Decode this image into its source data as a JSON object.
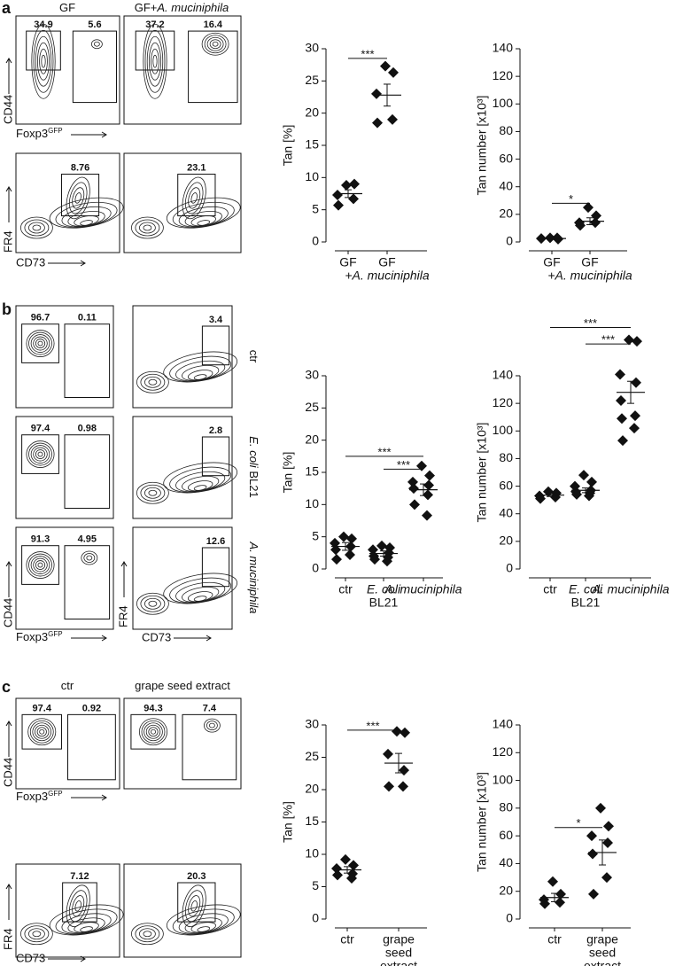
{
  "panel_labels": [
    "a",
    "b",
    "c"
  ],
  "flow": {
    "a": {
      "titles": [
        [
          {
            "t": "GF"
          }
        ],
        [
          {
            "t": "GF+"
          },
          {
            "t": "A. muciniphila",
            "i": true
          }
        ]
      ],
      "gates_top": [
        [
          "34.9",
          "5.6"
        ],
        [
          "37.2",
          "16.4"
        ]
      ],
      "gates_bottom": [
        "8.76",
        "23.1"
      ],
      "axes_top": {
        "y": "CD44",
        "x": [
          {
            "t": "Foxp3"
          },
          {
            "t": "GFP",
            "sup": true
          }
        ]
      },
      "axes_bottom": {
        "y": "FR4",
        "x": "CD73"
      }
    },
    "b": {
      "rows": [
        [
          {
            "t": "ctr"
          }
        ],
        [
          {
            "t": "E. coli",
            "i": true
          },
          {
            "t": " BL21"
          }
        ],
        [
          {
            "t": "A. muciniphila",
            "i": true
          }
        ]
      ],
      "gates_left": [
        [
          "96.7",
          "0.11"
        ],
        [
          "97.4",
          "0.98"
        ],
        [
          "91.3",
          "4.95"
        ]
      ],
      "gates_right": [
        "3.4",
        "2.8",
        "12.6"
      ],
      "axes_left": {
        "y": "CD44",
        "x": [
          {
            "t": "Foxp3"
          },
          {
            "t": "GFP",
            "sup": true
          }
        ]
      },
      "axes_right": {
        "y": "FR4",
        "x": "CD73"
      }
    },
    "c": {
      "titles": [
        [
          {
            "t": "ctr"
          }
        ],
        [
          {
            "t": "grape seed extract"
          }
        ]
      ],
      "gates_top": [
        [
          "97.4",
          "0.92"
        ],
        [
          "94.3",
          "7.4"
        ]
      ],
      "gates_bottom": [
        "7.12",
        "20.3"
      ],
      "axes_top": {
        "y": "CD44",
        "x": [
          {
            "t": "Foxp3"
          },
          {
            "t": "GFP",
            "sup": true
          }
        ]
      },
      "axes_bottom": {
        "y": "FR4",
        "x": "CD73"
      }
    }
  },
  "chart_data": [
    {
      "type": "dot",
      "ylabel": "Tan [%]",
      "color": "#111111",
      "categories": [
        [
          {
            "t": "GF"
          }
        ],
        [
          {
            "t": "GF"
          },
          {
            "t": "+A. muciniphila",
            "i": true
          }
        ]
      ],
      "values": [
        [
          8.8,
          9.0,
          7.3,
          6.7,
          5.7
        ],
        [
          27.3,
          26.3,
          23.0,
          19.0,
          18.5
        ]
      ],
      "means": [
        7.5,
        22.8
      ],
      "errors": [
        0.6,
        1.7
      ],
      "ylim": [
        0,
        30
      ],
      "yticks": [
        0,
        5,
        10,
        15,
        20,
        25,
        30
      ],
      "significance": [
        {
          "label": "***",
          "between": [
            0,
            1
          ],
          "y": 28.5
        }
      ]
    },
    {
      "type": "dot",
      "ylabel": "Tan number [x10³]",
      "color": "#111111",
      "categories": [
        [
          {
            "t": "GF"
          }
        ],
        [
          {
            "t": "GF"
          },
          {
            "t": "+A. muciniphila",
            "i": true
          }
        ]
      ],
      "values": [
        [
          3,
          2,
          2.5,
          3
        ],
        [
          25,
          19,
          14,
          14,
          12
        ]
      ],
      "means": [
        2.5,
        15
      ],
      "errors": [
        0.4,
        2.5
      ],
      "ylim": [
        0,
        140
      ],
      "yticks": [
        0,
        20,
        40,
        60,
        80,
        100,
        120,
        140
      ],
      "significance": [
        {
          "label": "*",
          "between": [
            0,
            1
          ],
          "y": 28
        }
      ]
    },
    {
      "type": "dot",
      "ylabel": "Tan [%]",
      "color": "#111111",
      "categories": [
        [
          {
            "t": "ctr"
          }
        ],
        [
          {
            "t": "E. coli",
            "i": true
          },
          {
            "t": "BL21"
          }
        ],
        [
          {
            "t": "A. muciniphila",
            "i": true
          }
        ]
      ],
      "values": [
        [
          5.0,
          4.7,
          4.0,
          3.5,
          3.0,
          2.2,
          1.5
        ],
        [
          3.6,
          3.3,
          3.0,
          2.5,
          2.0,
          1.8,
          1.5,
          1.2
        ],
        [
          16,
          14.5,
          13.5,
          13,
          12.5,
          11.5,
          10,
          8.3
        ]
      ],
      "means": [
        3.5,
        2.4,
        12.3
      ],
      "errors": [
        0.6,
        0.4,
        0.9
      ],
      "ylim": [
        0,
        30
      ],
      "yticks": [
        0,
        5,
        10,
        15,
        20,
        25,
        30
      ],
      "significance": [
        {
          "label": "***",
          "between": [
            0,
            2
          ],
          "y": 17.5
        },
        {
          "label": "***",
          "between": [
            1,
            2
          ],
          "y": 15.5
        }
      ]
    },
    {
      "type": "dot",
      "ylabel": "Tan number [x10³]",
      "color": "#111111",
      "categories": [
        [
          {
            "t": "ctr"
          }
        ],
        [
          {
            "t": "E. coli",
            "i": true
          },
          {
            "t": "BL21"
          }
        ],
        [
          {
            "t": "A. muciniphila",
            "i": true
          }
        ]
      ],
      "values": [
        [
          56,
          55,
          53,
          52,
          51
        ],
        [
          68,
          63,
          60,
          57,
          56,
          55,
          54,
          53
        ],
        [
          166,
          165,
          141,
          135,
          122,
          111,
          109,
          102,
          93
        ]
      ],
      "means": [
        53.5,
        57,
        128
      ],
      "errors": [
        1,
        1.7,
        8
      ],
      "ylim": [
        0,
        140
      ],
      "yticks": [
        0,
        20,
        40,
        60,
        80,
        100,
        120,
        140
      ],
      "significance": [
        {
          "label": "***",
          "between": [
            0,
            2
          ],
          "y": 175
        },
        {
          "label": "***",
          "between": [
            1,
            2
          ],
          "y": 163
        }
      ]
    },
    {
      "type": "dot",
      "ylabel": "Tan [%]",
      "color": "#111111",
      "categories": [
        [
          {
            "t": "ctr"
          }
        ],
        [
          {
            "t": "grape"
          },
          {
            "t": "seed"
          },
          {
            "t": "extract"
          }
        ]
      ],
      "values": [
        [
          9.2,
          8.3,
          7.8,
          7.0,
          6.8,
          6.3
        ],
        [
          29,
          28.8,
          25.5,
          23,
          20.5,
          20.5
        ]
      ],
      "means": [
        7.6,
        24.1
      ],
      "errors": [
        0.5,
        1.5
      ],
      "ylim": [
        0,
        30
      ],
      "yticks": [
        0,
        5,
        10,
        15,
        20,
        25,
        30
      ],
      "significance": [
        {
          "label": "***",
          "between": [
            0,
            1
          ],
          "y": 29.2
        }
      ]
    },
    {
      "type": "dot",
      "ylabel": "Tan number [x10³]",
      "color": "#111111",
      "categories": [
        [
          {
            "t": "ctr"
          }
        ],
        [
          {
            "t": "grape"
          },
          {
            "t": "seed"
          },
          {
            "t": "extract"
          }
        ]
      ],
      "values": [
        [
          27,
          18,
          14,
          12,
          11
        ],
        [
          80,
          67,
          60,
          55,
          47,
          30,
          18
        ]
      ],
      "means": [
        15.5,
        48
      ],
      "errors": [
        3,
        9
      ],
      "ylim": [
        0,
        140
      ],
      "yticks": [
        0,
        20,
        40,
        60,
        80,
        100,
        120,
        140
      ],
      "significance": [
        {
          "label": "*",
          "between": [
            0,
            1
          ],
          "y": 66
        }
      ]
    }
  ]
}
